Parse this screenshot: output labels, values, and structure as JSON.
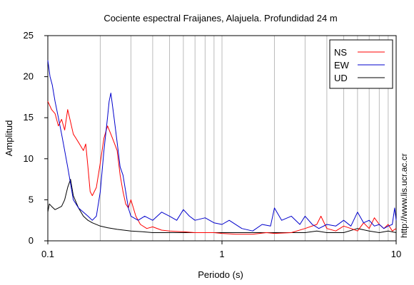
{
  "chart_data": {
    "type": "line",
    "title": "Cociente espectral Fraijanes, Alajuela. Profundidad 24 m",
    "xlabel": "Periodo (s)",
    "ylabel": "Amplitud",
    "xscale": "log",
    "xlim": [
      0.1,
      10
    ],
    "ylim": [
      0,
      25
    ],
    "x_tick_labels": [
      "0.1",
      "1",
      "10"
    ],
    "x_ticks": [
      0.1,
      1,
      10
    ],
    "y_ticks": [
      0,
      5,
      10,
      15,
      20,
      25
    ],
    "y_tick_labels": [
      "0",
      "5",
      "10",
      "15",
      "20",
      "25"
    ],
    "grid": "vertical lines at 1-2-...-9 decades",
    "legend_position": "top-right",
    "side_text": "http://www.lis.ucr.ac.cr",
    "series": [
      {
        "name": "NS",
        "color": "#ff0000",
        "x": [
          0.1,
          0.105,
          0.11,
          0.115,
          0.12,
          0.125,
          0.13,
          0.135,
          0.14,
          0.145,
          0.15,
          0.155,
          0.16,
          0.165,
          0.17,
          0.175,
          0.18,
          0.19,
          0.2,
          0.21,
          0.22,
          0.23,
          0.24,
          0.25,
          0.26,
          0.27,
          0.28,
          0.29,
          0.3,
          0.32,
          0.34,
          0.37,
          0.4,
          0.45,
          0.5,
          0.6,
          0.7,
          0.8,
          0.9,
          1.0,
          1.2,
          1.5,
          1.8,
          2.0,
          2.5,
          3.0,
          3.5,
          3.7,
          4.0,
          4.5,
          5.0,
          5.5,
          6.0,
          6.5,
          7.0,
          7.5,
          8.0,
          8.5,
          9.0,
          9.5,
          10.0
        ],
        "y": [
          17,
          16,
          15.5,
          14,
          14.8,
          13.5,
          16,
          14.5,
          13,
          12.5,
          12,
          11.5,
          11,
          11.8,
          9,
          6,
          5.5,
          6.5,
          9.5,
          12.5,
          14,
          13,
          12,
          11,
          8,
          6,
          4.5,
          4,
          5,
          3,
          2,
          1.5,
          1.7,
          1.3,
          1.2,
          1.1,
          1,
          1,
          1,
          0.9,
          0.8,
          0.8,
          1,
          0.9,
          1,
          1.5,
          2,
          3,
          1.5,
          1.2,
          1.8,
          1.5,
          1.2,
          2.2,
          1.5,
          2.8,
          2,
          1.5,
          2,
          1.2,
          1.5
        ]
      },
      {
        "name": "EW",
        "color": "#0000cc",
        "x": [
          0.1,
          0.103,
          0.106,
          0.11,
          0.115,
          0.12,
          0.125,
          0.13,
          0.135,
          0.14,
          0.15,
          0.16,
          0.17,
          0.18,
          0.19,
          0.2,
          0.21,
          0.22,
          0.225,
          0.23,
          0.24,
          0.25,
          0.26,
          0.27,
          0.28,
          0.29,
          0.3,
          0.33,
          0.36,
          0.4,
          0.45,
          0.5,
          0.55,
          0.6,
          0.65,
          0.7,
          0.8,
          0.9,
          1.0,
          1.1,
          1.3,
          1.5,
          1.7,
          1.9,
          2.0,
          2.2,
          2.5,
          2.8,
          3.0,
          3.3,
          3.6,
          4.0,
          4.5,
          5.0,
          5.5,
          6.0,
          6.5,
          7.0,
          7.5,
          8.0,
          8.5,
          9.0,
          9.5,
          9.8,
          10.0
        ],
        "y": [
          22,
          20,
          19,
          17,
          15,
          13,
          11,
          9,
          7,
          5,
          4,
          3.5,
          3,
          2.5,
          3,
          6,
          11,
          15,
          17,
          18,
          15,
          12,
          9,
          8,
          6,
          4,
          3,
          2.5,
          3,
          2.5,
          3.5,
          3,
          2.5,
          3.8,
          3,
          2.5,
          2.8,
          2.2,
          2,
          2.5,
          1.5,
          1.2,
          2,
          1.8,
          4,
          2.5,
          3,
          2,
          3,
          2,
          1.5,
          2,
          1.8,
          2.5,
          1.8,
          3.5,
          2.2,
          2.5,
          1.8,
          2,
          1.5,
          1.8,
          2,
          4,
          2.5
        ]
      },
      {
        "name": "UD",
        "color": "#000000",
        "x": [
          0.1,
          0.102,
          0.105,
          0.11,
          0.115,
          0.12,
          0.125,
          0.13,
          0.135,
          0.14,
          0.15,
          0.16,
          0.17,
          0.18,
          0.2,
          0.22,
          0.25,
          0.3,
          0.35,
          0.4,
          0.5,
          0.6,
          0.8,
          1.0,
          1.5,
          2.0,
          3.0,
          3.5,
          4.0,
          5.0,
          6.0,
          7.0,
          8.0,
          9.0,
          10.0
        ],
        "y": [
          3.5,
          4.5,
          4.2,
          3.8,
          4,
          4.2,
          5,
          6.5,
          7.5,
          5.5,
          4,
          3,
          2.5,
          2.2,
          1.8,
          1.6,
          1.4,
          1.2,
          1.1,
          1,
          1,
          1,
          1,
          1,
          1,
          1,
          1,
          1.2,
          1,
          1,
          1.5,
          1.2,
          1,
          1.2,
          1
        ]
      }
    ]
  }
}
